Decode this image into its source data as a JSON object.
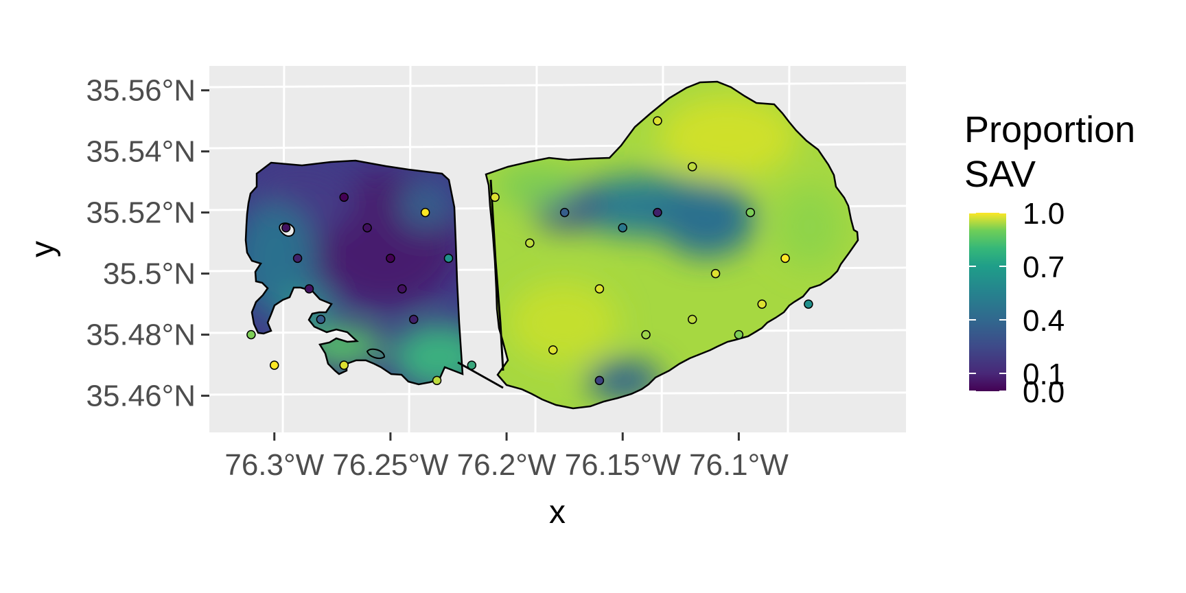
{
  "chart_data": {
    "type": "map",
    "xlabel": "x",
    "ylabel": "y",
    "x_ticks": [
      {
        "value": -76.3,
        "label": "76.3°W"
      },
      {
        "value": -76.25,
        "label": "76.25°W"
      },
      {
        "value": -76.2,
        "label": "76.2°W"
      },
      {
        "value": -76.15,
        "label": "76.15°W"
      },
      {
        "value": -76.1,
        "label": "76.1°W"
      }
    ],
    "y_ticks": [
      {
        "value": 35.56,
        "label": "35.56°N"
      },
      {
        "value": 35.54,
        "label": "35.54°N"
      },
      {
        "value": 35.52,
        "label": "35.52°N"
      },
      {
        "value": 35.5,
        "label": "35.5°N"
      },
      {
        "value": 35.48,
        "label": "35.48°N"
      },
      {
        "value": 35.46,
        "label": "35.46°N"
      }
    ],
    "xlim": [
      -76.328,
      -76.028
    ],
    "ylim": [
      35.448,
      35.568
    ],
    "grid": true,
    "legend": {
      "title_lines": [
        "Proportion",
        "SAV"
      ],
      "position": "right",
      "ticks": [
        {
          "value": 1.0,
          "label": "1.0"
        },
        {
          "value": 0.7,
          "label": "0.7"
        },
        {
          "value": 0.4,
          "label": "0.4"
        },
        {
          "value": 0.1,
          "label": "0.1"
        },
        {
          "value": 0.0,
          "label": "0.0"
        }
      ],
      "colors": [
        "#440154",
        "#3b528b",
        "#21908c",
        "#5dc863",
        "#fde725"
      ]
    },
    "panel_background": "#ebebeb",
    "outline_color": "#000000",
    "regions": [
      {
        "name": "west",
        "level_range": [
          0.0,
          0.2
        ]
      },
      {
        "name": "east",
        "level_range": [
          0.75,
          0.9
        ]
      }
    ],
    "points": [
      {
        "x": -76.295,
        "y": 35.515,
        "v": 0.05
      },
      {
        "x": -76.29,
        "y": 35.505,
        "v": 0.1
      },
      {
        "x": -76.285,
        "y": 35.495,
        "v": 0.05
      },
      {
        "x": -76.28,
        "y": 35.485,
        "v": 0.3
      },
      {
        "x": -76.27,
        "y": 35.525,
        "v": 0.0
      },
      {
        "x": -76.26,
        "y": 35.515,
        "v": 0.05
      },
      {
        "x": -76.25,
        "y": 35.505,
        "v": 0.0
      },
      {
        "x": -76.245,
        "y": 35.495,
        "v": 0.05
      },
      {
        "x": -76.24,
        "y": 35.485,
        "v": 0.1
      },
      {
        "x": -76.235,
        "y": 35.52,
        "v": 1.0
      },
      {
        "x": -76.225,
        "y": 35.505,
        "v": 0.5
      },
      {
        "x": -76.205,
        "y": 35.525,
        "v": 0.95
      },
      {
        "x": -76.19,
        "y": 35.51,
        "v": 0.9
      },
      {
        "x": -76.175,
        "y": 35.52,
        "v": 0.3
      },
      {
        "x": -76.16,
        "y": 35.495,
        "v": 0.95
      },
      {
        "x": -76.15,
        "y": 35.515,
        "v": 0.4
      },
      {
        "x": -76.135,
        "y": 35.52,
        "v": 0.1
      },
      {
        "x": -76.12,
        "y": 35.535,
        "v": 0.9
      },
      {
        "x": -76.11,
        "y": 35.5,
        "v": 0.95
      },
      {
        "x": -76.095,
        "y": 35.52,
        "v": 0.8
      },
      {
        "x": -76.08,
        "y": 35.505,
        "v": 1.0
      },
      {
        "x": -76.07,
        "y": 35.49,
        "v": 0.5
      },
      {
        "x": -76.16,
        "y": 35.465,
        "v": 0.2
      },
      {
        "x": -76.18,
        "y": 35.475,
        "v": 0.95
      },
      {
        "x": -76.14,
        "y": 35.48,
        "v": 0.85
      },
      {
        "x": -76.12,
        "y": 35.485,
        "v": 0.9
      },
      {
        "x": -76.1,
        "y": 35.48,
        "v": 0.8
      },
      {
        "x": -76.09,
        "y": 35.49,
        "v": 0.95
      },
      {
        "x": -76.135,
        "y": 35.55,
        "v": 0.95
      },
      {
        "x": -76.23,
        "y": 35.465,
        "v": 0.9
      },
      {
        "x": -76.215,
        "y": 35.47,
        "v": 0.6
      },
      {
        "x": -76.31,
        "y": 35.48,
        "v": 0.8
      },
      {
        "x": -76.3,
        "y": 35.47,
        "v": 1.0
      },
      {
        "x": -76.27,
        "y": 35.47,
        "v": 0.95
      }
    ]
  }
}
